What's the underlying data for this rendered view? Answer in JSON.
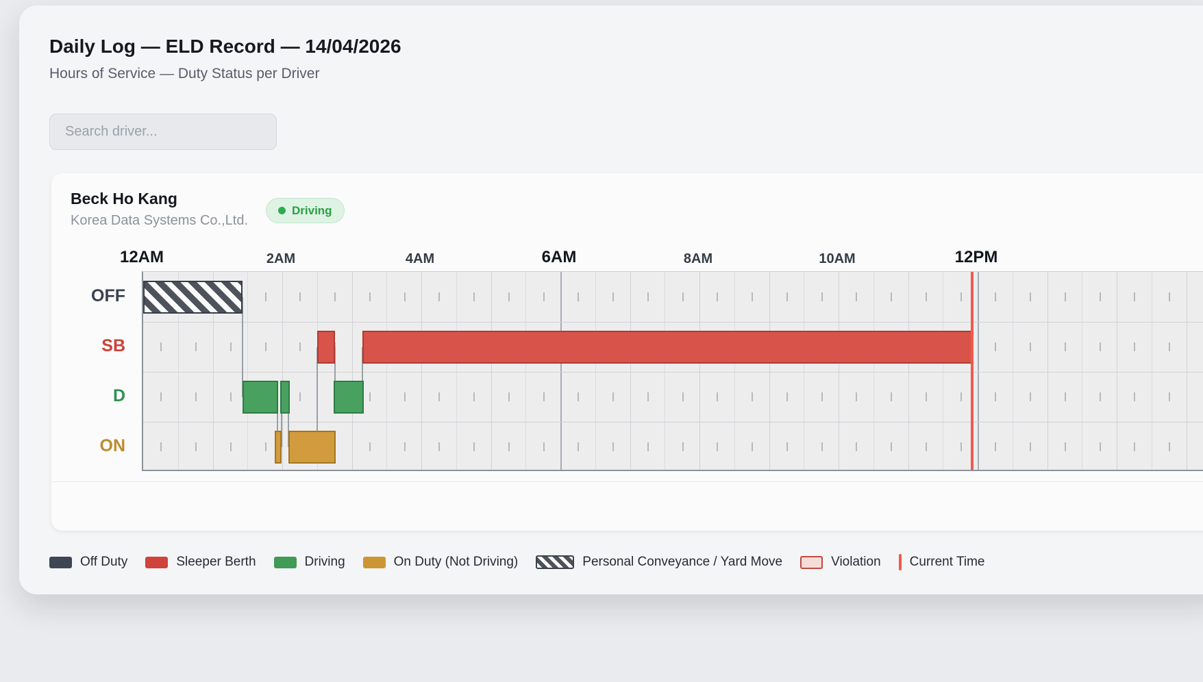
{
  "page": {
    "title": "Daily Log — ELD Record — 14/04/2026",
    "subtitle": "Hours of Service — Duty Status per Driver"
  },
  "search": {
    "placeholder": "Search driver..."
  },
  "driver": {
    "name": "Beck Ho Kang",
    "company": "Korea Data Systems Co.,Ltd.",
    "status": "Driving"
  },
  "chart_data": {
    "type": "eld_duty_status_timeline",
    "x_axis": {
      "unit": "hour_of_day",
      "range_hours": [
        0,
        24
      ],
      "tick_interval_hours": 2,
      "labels": [
        {
          "hour": 0,
          "label": "12AM",
          "emphasis": true
        },
        {
          "hour": 2,
          "label": "2AM",
          "emphasis": false
        },
        {
          "hour": 4,
          "label": "4AM",
          "emphasis": false
        },
        {
          "hour": 6,
          "label": "6AM",
          "emphasis": true
        },
        {
          "hour": 8,
          "label": "8AM",
          "emphasis": false
        },
        {
          "hour": 10,
          "label": "10AM",
          "emphasis": false
        },
        {
          "hour": 12,
          "label": "12PM",
          "emphasis": true
        }
      ],
      "major_gridline_hours": [
        0,
        6,
        12,
        18
      ]
    },
    "rows": [
      {
        "key": "OFF",
        "label": "OFF",
        "color": "#3a4150"
      },
      {
        "key": "SB",
        "label": "SB",
        "color": "#cc4237"
      },
      {
        "key": "D",
        "label": "D",
        "color": "#2e9150"
      },
      {
        "key": "ON",
        "label": "ON",
        "color": "#bd8b2e"
      }
    ],
    "segments": [
      {
        "row": "OFF",
        "start_hour": 0.0,
        "end_hour": 1.43,
        "status": "personal_conveyance"
      },
      {
        "row": "D",
        "start_hour": 1.43,
        "end_hour": 1.94,
        "status": "driving"
      },
      {
        "row": "ON",
        "start_hour": 1.89,
        "end_hour": 1.99,
        "status": "on_duty"
      },
      {
        "row": "D",
        "start_hour": 1.97,
        "end_hour": 2.11,
        "status": "driving"
      },
      {
        "row": "ON",
        "start_hour": 2.09,
        "end_hour": 2.77,
        "status": "on_duty"
      },
      {
        "row": "SB",
        "start_hour": 2.5,
        "end_hour": 2.76,
        "status": "sleeper_berth"
      },
      {
        "row": "D",
        "start_hour": 2.74,
        "end_hour": 3.17,
        "status": "driving"
      },
      {
        "row": "SB",
        "start_hour": 3.15,
        "end_hour": 11.92,
        "status": "sleeper_berth"
      }
    ],
    "connectors": [
      {
        "hour": 1.43,
        "from": "OFF",
        "to": "D"
      },
      {
        "hour": 1.93,
        "from": "D",
        "to": "ON"
      },
      {
        "hour": 1.99,
        "from": "ON",
        "to": "D"
      },
      {
        "hour": 2.09,
        "from": "D",
        "to": "ON"
      },
      {
        "hour": 2.5,
        "from": "SB",
        "to": "ON"
      },
      {
        "hour": 2.76,
        "from": "SB",
        "to": "D"
      },
      {
        "hour": 3.15,
        "from": "D",
        "to": "SB"
      }
    ],
    "current_time_hour": 11.92
  },
  "legend": {
    "items": [
      {
        "swatch": "off_duty",
        "label": "Off Duty"
      },
      {
        "swatch": "sleeper_berth",
        "label": "Sleeper Berth"
      },
      {
        "swatch": "driving",
        "label": "Driving"
      },
      {
        "swatch": "on_duty",
        "label": "On Duty (Not Driving)"
      },
      {
        "swatch": "personal_conveyance",
        "label": "Personal Conveyance / Yard Move"
      },
      {
        "swatch": "violation",
        "label": "Violation"
      },
      {
        "swatch": "current_time",
        "label": "Current Time"
      }
    ]
  },
  "colors": {
    "off_duty": "#3e4654",
    "sleeper_berth": "#d8544a",
    "driving": "#49a15f",
    "on_duty": "#d29b3d",
    "violation_fill": "#f5dcd8",
    "violation_border": "#c4473c",
    "current_time": "#f2594b",
    "status_badge_green": "#27a044"
  }
}
